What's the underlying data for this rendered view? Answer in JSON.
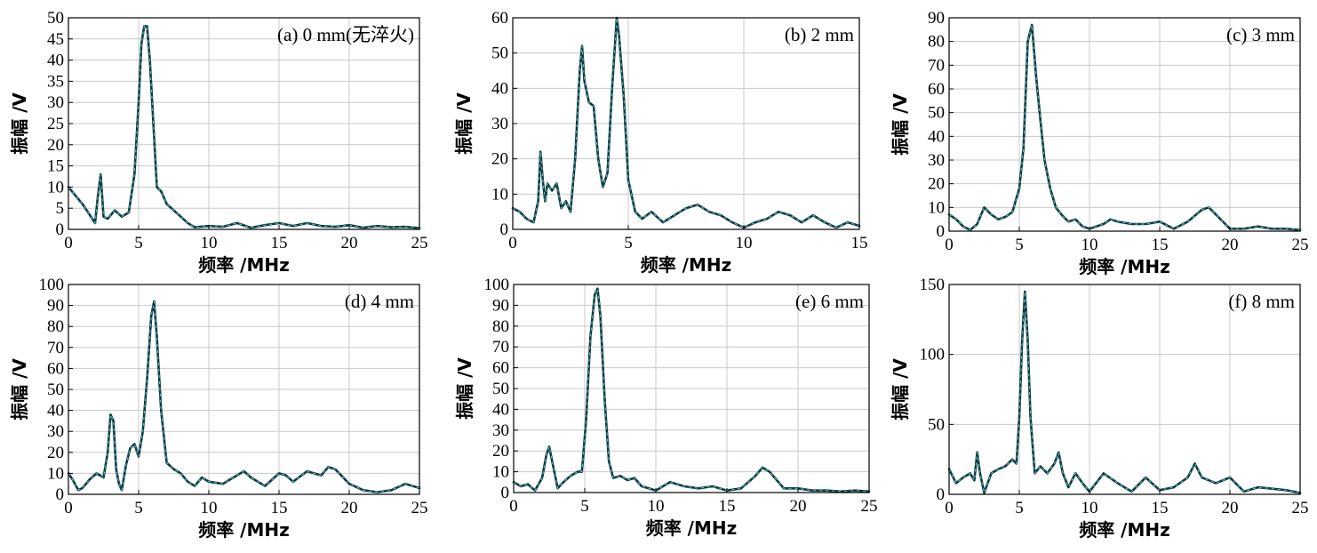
{
  "figure": {
    "ylabel": "振幅 /V",
    "xlabel": "频率 /MHz",
    "colors": {
      "line": "#0b3b3f",
      "highlight": "#6fd3e6",
      "grid": "#c8c8c8"
    }
  },
  "chart_data": [
    {
      "type": "line",
      "title": "(a) 0 mm(无淬火)",
      "xlabel": "频率 /MHz",
      "ylabel": "振幅 /V",
      "xlim": [
        0,
        25
      ],
      "ylim": [
        0,
        50
      ],
      "xticks": [
        0,
        5,
        10,
        15,
        20,
        25
      ],
      "yticks": [
        0,
        5,
        10,
        15,
        20,
        25,
        30,
        35,
        40,
        45,
        50
      ],
      "grid": true,
      "x": [
        0,
        0.5,
        1,
        1.5,
        1.9,
        2.1,
        2.3,
        2.5,
        2.8,
        3.3,
        3.8,
        4.3,
        4.7,
        5.0,
        5.2,
        5.4,
        5.6,
        5.8,
        6.0,
        6.3,
        6.6,
        7.0,
        7.5,
        8.0,
        8.5,
        9,
        10,
        11,
        12,
        13,
        14,
        15,
        16,
        17,
        18,
        19,
        20,
        21,
        22,
        23,
        24,
        25
      ],
      "y": [
        10,
        8,
        6,
        3.5,
        1.5,
        8,
        13,
        3,
        2.5,
        4.5,
        3,
        4,
        13,
        30,
        44,
        48,
        48,
        40,
        28,
        10,
        9,
        6,
        4.5,
        3,
        1.5,
        0.5,
        0.8,
        0.6,
        1.5,
        0.4,
        1.0,
        1.5,
        0.8,
        1.5,
        0.8,
        0.6,
        1.0,
        0.4,
        0.8,
        0.5,
        0.6,
        0.3
      ]
    },
    {
      "type": "line",
      "title": "(b) 2 mm",
      "xlabel": "频率 /MHz",
      "ylabel": "振幅 /V",
      "xlim": [
        0,
        15
      ],
      "ylim": [
        0,
        60
      ],
      "xticks": [
        0,
        5,
        10,
        15
      ],
      "yticks": [
        0,
        10,
        20,
        30,
        40,
        50,
        60
      ],
      "grid": true,
      "x": [
        0,
        0.3,
        0.6,
        0.9,
        1.1,
        1.2,
        1.3,
        1.4,
        1.5,
        1.7,
        1.9,
        2.1,
        2.3,
        2.5,
        2.7,
        2.9,
        3.0,
        3.1,
        3.3,
        3.5,
        3.7,
        3.9,
        4.1,
        4.3,
        4.5,
        4.6,
        4.8,
        5.0,
        5.3,
        5.6,
        6.0,
        6.5,
        7.0,
        7.5,
        8.0,
        8.5,
        9.0,
        9.5,
        10.0,
        10.5,
        11.0,
        11.5,
        12.0,
        12.5,
        13.0,
        13.5,
        14.0,
        14.5,
        15.0
      ],
      "y": [
        6,
        5,
        3,
        2,
        8,
        22,
        14,
        8,
        13,
        11,
        13,
        6,
        8,
        5,
        20,
        45,
        52,
        42,
        36,
        35,
        20,
        12,
        16,
        40,
        60,
        55,
        38,
        14,
        5,
        3,
        5,
        2,
        4,
        6,
        7,
        5,
        4,
        2,
        0.5,
        2,
        3,
        5,
        4,
        2,
        4,
        2,
        0.5,
        2,
        1
      ]
    },
    {
      "type": "line",
      "title": "(c) 3 mm",
      "xlabel": "频率 /MHz",
      "ylabel": "振幅 /V",
      "xlim": [
        0,
        25
      ],
      "ylim": [
        0,
        90
      ],
      "xticks": [
        0,
        5,
        10,
        15,
        20,
        25
      ],
      "yticks": [
        0,
        10,
        20,
        30,
        40,
        50,
        60,
        70,
        80,
        90
      ],
      "grid": true,
      "x": [
        0,
        0.5,
        1.0,
        1.5,
        2.0,
        2.5,
        3.0,
        3.5,
        4.0,
        4.5,
        5.0,
        5.3,
        5.6,
        5.9,
        6.2,
        6.5,
        6.8,
        7.2,
        7.6,
        8.0,
        8.5,
        9.0,
        9.5,
        10,
        11,
        11.5,
        12,
        13,
        14,
        15,
        16,
        17,
        18,
        18.5,
        19,
        20,
        21,
        22,
        23,
        24,
        25
      ],
      "y": [
        7,
        5,
        2,
        0.5,
        3,
        10,
        7,
        5,
        6,
        8,
        18,
        35,
        80,
        87,
        65,
        47,
        30,
        18,
        10,
        7,
        4,
        5,
        2,
        1,
        3,
        5,
        4,
        3,
        3,
        4,
        1,
        4,
        9,
        10,
        7,
        1,
        1,
        2,
        1,
        1,
        0.5
      ]
    },
    {
      "type": "line",
      "title": "(d) 4 mm",
      "xlabel": "频率 /MHz",
      "ylabel": "振幅 /V",
      "xlim": [
        0,
        25
      ],
      "ylim": [
        0,
        100
      ],
      "xticks": [
        0,
        5,
        10,
        15,
        20,
        25
      ],
      "yticks": [
        0,
        10,
        20,
        30,
        40,
        50,
        60,
        70,
        80,
        90,
        100
      ],
      "grid": true,
      "x": [
        0,
        0.3,
        0.7,
        1.0,
        1.5,
        2.0,
        2.5,
        2.8,
        3.0,
        3.2,
        3.4,
        3.6,
        3.8,
        4.1,
        4.4,
        4.7,
        5.0,
        5.3,
        5.6,
        5.9,
        6.1,
        6.3,
        6.6,
        7.0,
        7.5,
        8.0,
        8.5,
        9,
        9.5,
        10,
        11,
        12,
        12.5,
        13,
        14,
        15,
        15.5,
        16,
        17,
        18,
        18.5,
        19,
        20,
        21,
        22,
        23,
        24,
        25
      ],
      "y": [
        10,
        7,
        2,
        3,
        7,
        10,
        8,
        20,
        38,
        35,
        12,
        5,
        2,
        14,
        22,
        24,
        18,
        30,
        55,
        85,
        92,
        75,
        40,
        15,
        12,
        10,
        6,
        4,
        8,
        6,
        5,
        9,
        11,
        8,
        4,
        10,
        9,
        6,
        11,
        9,
        13,
        12,
        5,
        2,
        1,
        2,
        5,
        3
      ]
    },
    {
      "type": "line",
      "title": "(e) 6 mm",
      "xlabel": "频率 /MHz",
      "ylabel": "振幅 /V",
      "xlim": [
        0,
        25
      ],
      "ylim": [
        0,
        100
      ],
      "xticks": [
        0,
        5,
        10,
        15,
        20,
        25
      ],
      "yticks": [
        0,
        10,
        20,
        30,
        40,
        50,
        60,
        70,
        80,
        90,
        100
      ],
      "grid": true,
      "x": [
        0,
        0.5,
        1.0,
        1.5,
        2.0,
        2.3,
        2.5,
        2.8,
        3.1,
        3.5,
        4.0,
        4.5,
        4.8,
        5.1,
        5.4,
        5.7,
        5.9,
        6.1,
        6.4,
        6.7,
        7.0,
        7.5,
        8.0,
        8.5,
        9.0,
        9.5,
        10,
        11,
        12,
        13,
        14,
        15,
        16,
        17,
        17.5,
        18,
        19,
        20,
        21,
        22,
        23,
        24,
        25
      ],
      "y": [
        5,
        3,
        4,
        1,
        7,
        18,
        22,
        12,
        2,
        5,
        8,
        10,
        10,
        35,
        75,
        95,
        98,
        85,
        45,
        15,
        7,
        8,
        6,
        7,
        3,
        2,
        1,
        5,
        3,
        2,
        3,
        1,
        2,
        8,
        12,
        10,
        2,
        2,
        1,
        1,
        0.5,
        1,
        0.5
      ]
    },
    {
      "type": "line",
      "title": "(f) 8 mm",
      "xlabel": "频率 /MHz",
      "ylabel": "振幅 /V",
      "xlim": [
        0,
        25
      ],
      "ylim": [
        0,
        150
      ],
      "xticks": [
        0,
        5,
        10,
        15,
        20,
        25
      ],
      "yticks": [
        0,
        50,
        100,
        150
      ],
      "grid": true,
      "x": [
        0,
        0.5,
        1.0,
        1.5,
        1.8,
        2.0,
        2.2,
        2.5,
        3.0,
        3.5,
        4.0,
        4.5,
        4.8,
        5.0,
        5.2,
        5.4,
        5.6,
        5.8,
        6.1,
        6.5,
        7.0,
        7.5,
        7.8,
        8.1,
        8.5,
        9.0,
        9.5,
        10.0,
        11.0,
        12.0,
        13.0,
        14.0,
        15.0,
        16.0,
        17.0,
        17.5,
        18.0,
        19.0,
        20.0,
        21.0,
        22.0,
        23.0,
        24.0,
        25.0
      ],
      "y": [
        18,
        8,
        12,
        15,
        10,
        30,
        15,
        1,
        15,
        18,
        20,
        25,
        22,
        55,
        110,
        145,
        110,
        55,
        15,
        20,
        15,
        22,
        30,
        15,
        5,
        15,
        8,
        2,
        15,
        8,
        2,
        12,
        3,
        5,
        12,
        22,
        12,
        8,
        12,
        2,
        5,
        4,
        3,
        1
      ]
    }
  ]
}
